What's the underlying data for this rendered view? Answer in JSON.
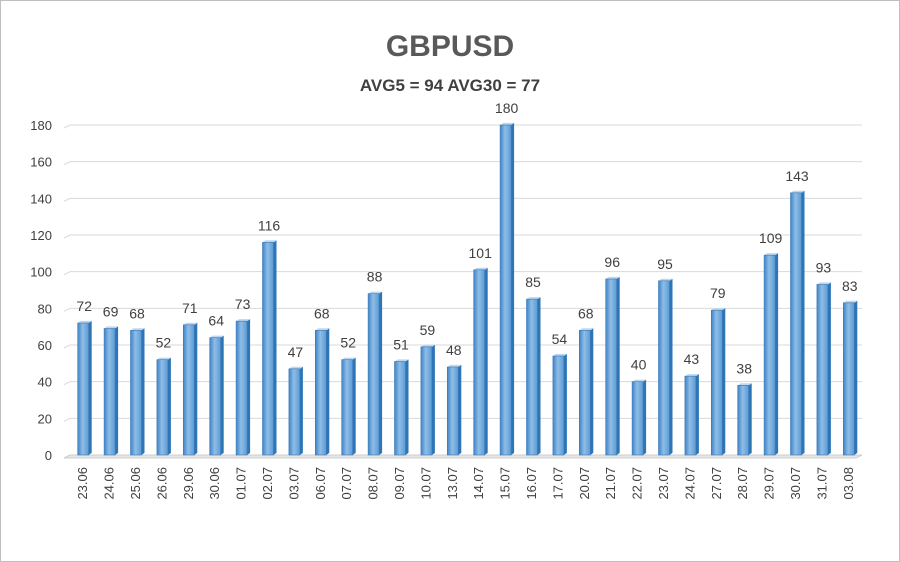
{
  "chart_data": {
    "type": "bar",
    "title": "GBPUSD",
    "subtitle": "AVG5 = 94 AVG30 = 77",
    "xlabel": "",
    "ylabel": "",
    "ylim": [
      0,
      180
    ],
    "yticks": [
      0,
      20,
      40,
      60,
      80,
      100,
      120,
      140,
      160,
      180
    ],
    "grid": true,
    "legend": "none",
    "categories": [
      "23.06",
      "24.06",
      "25.06",
      "26.06",
      "29.06",
      "30.06",
      "01.07",
      "02.07",
      "03.07",
      "06.07",
      "07.07",
      "08.07",
      "09.07",
      "10.07",
      "13.07",
      "14.07",
      "15.07",
      "16.07",
      "17.07",
      "20.07",
      "21.07",
      "22.07",
      "23.07",
      "24.07",
      "27.07",
      "28.07",
      "29.07",
      "30.07",
      "31.07",
      "03.08"
    ],
    "values": [
      72,
      69,
      68,
      52,
      71,
      64,
      73,
      116,
      47,
      68,
      52,
      88,
      51,
      59,
      48,
      101,
      180,
      85,
      54,
      68,
      96,
      40,
      95,
      43,
      79,
      38,
      109,
      143,
      93,
      83
    ],
    "colors": {
      "bar_front": "#5b9bd5",
      "bar_light": "#9dc3e6",
      "bar_side": "#2e75b6",
      "bar_top": "#bdd7ee"
    }
  }
}
